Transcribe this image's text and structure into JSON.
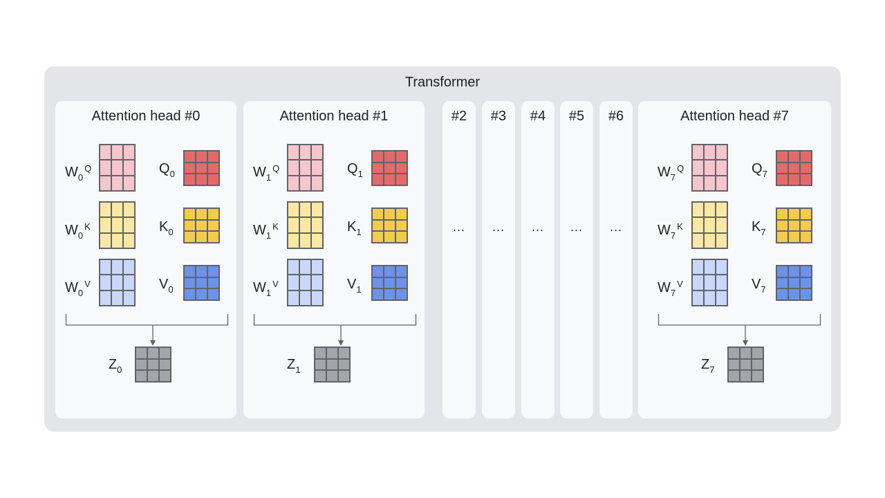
{
  "title": "Transformer",
  "colors": {
    "wq": "#f5c6cb",
    "q": "#e46a6a",
    "wk": "#fce8a6",
    "k": "#f3cc4a",
    "wv": "#c9d8f8",
    "v": "#6c93ea",
    "z": "#a4a5a8"
  },
  "heads": [
    {
      "title": "Attention head #0",
      "sub": "0"
    },
    {
      "title": "Attention head #1",
      "sub": "1"
    },
    {
      "title": "Attention head #7",
      "sub": "7"
    }
  ],
  "mini_heads": [
    {
      "label": "#2",
      "ellipsis": "..."
    },
    {
      "label": "#3",
      "ellipsis": "..."
    },
    {
      "label": "#4",
      "ellipsis": "..."
    },
    {
      "label": "#5",
      "ellipsis": "..."
    },
    {
      "label": "#6",
      "ellipsis": "..."
    }
  ],
  "symbols": {
    "w": "W",
    "q": "Q",
    "k": "K",
    "v": "V",
    "z": "Z"
  }
}
